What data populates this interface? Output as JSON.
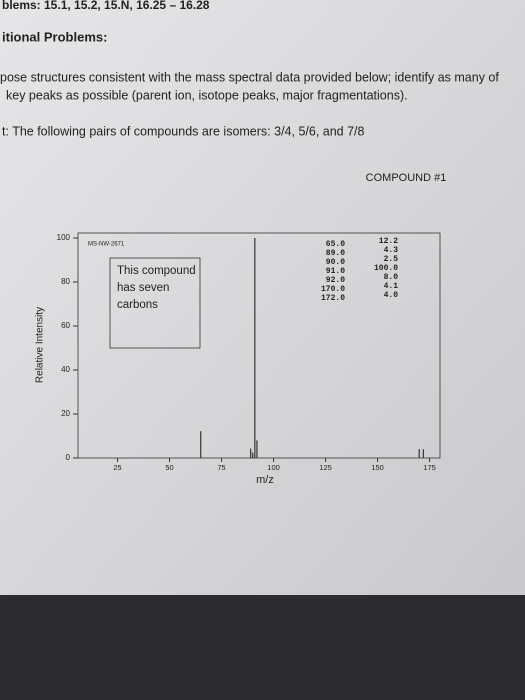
{
  "header": {
    "course_line": "blems: 15.1, 15.2, 15.N, 16.25 – 16.28",
    "section": "itional Problems:",
    "instructions": [
      "pose structures consistent with the mass spectral data provided below; identify as many of",
      "key peaks as possible (parent ion, isotope peaks, major fragmentations)."
    ],
    "hint": "t: The following pairs of compounds are isomers: 3/4, 5/6, and 7/8"
  },
  "chart_data": {
    "type": "bar",
    "title": "COMPOUND #1",
    "spectrum_id": "MS-NW-2671",
    "annotation": [
      "This compound",
      "has seven",
      "carbons"
    ],
    "xlabel": "m/z",
    "ylabel": "Relative Intensity",
    "x": [
      65,
      89,
      90,
      91,
      92,
      170,
      172
    ],
    "x_labels": [
      "65.0",
      "89.0",
      "90.0",
      "91.0",
      "92.0",
      "170.0",
      "172.0"
    ],
    "values": [
      12.2,
      4.3,
      2.5,
      100,
      8,
      4.1,
      4
    ],
    "value_labels": [
      "12.2",
      "4.3",
      "2.5",
      "100.0",
      "8.0",
      "4.1",
      "4.0"
    ],
    "color": "#333333",
    "xlim": [
      6,
      180
    ],
    "ylim": [
      0,
      100
    ],
    "xticks": [
      25,
      50,
      75,
      100,
      125,
      150,
      175
    ],
    "yticks": [
      0,
      20,
      40,
      60,
      80,
      100
    ]
  }
}
